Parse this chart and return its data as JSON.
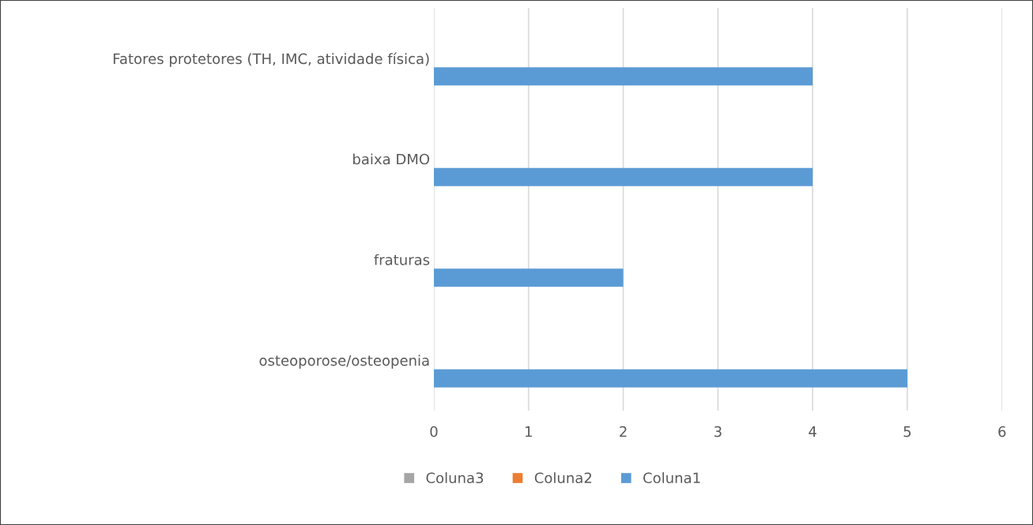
{
  "chart_data": {
    "type": "bar",
    "orientation": "horizontal",
    "categories": [
      "Fatores protetores (TH, IMC, atividade física)",
      "baixa DMO",
      "fraturas",
      "osteoporose/osteopenia"
    ],
    "series": [
      {
        "name": "Coluna1",
        "color": "#5b9bd5",
        "values": [
          4,
          4,
          2,
          5
        ]
      },
      {
        "name": "Coluna2",
        "color": "#ed7d31",
        "values": [
          null,
          null,
          null,
          null
        ]
      },
      {
        "name": "Coluna3",
        "color": "#a5a5a5",
        "values": [
          null,
          null,
          null,
          null
        ]
      }
    ],
    "xlim": [
      0,
      6
    ],
    "xticks": [
      0,
      1,
      2,
      3,
      4,
      5,
      6
    ],
    "grid": "x",
    "legend": "bottom"
  }
}
